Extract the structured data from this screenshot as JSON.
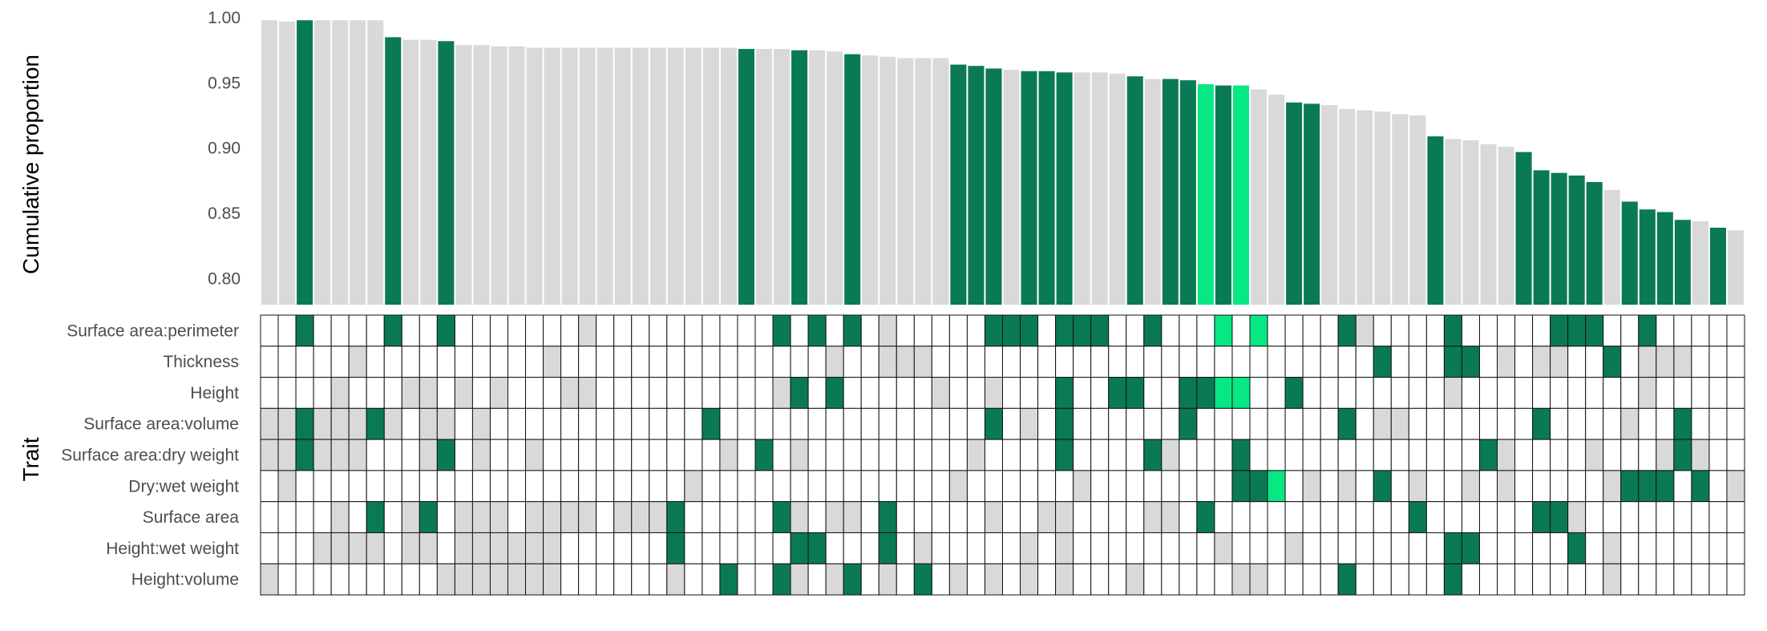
{
  "colors": {
    "dark_green": "#0a7a55",
    "light_green": "#07e884",
    "grey": "#d9d9d9",
    "white": "#ffffff",
    "grid_stroke": "#111111"
  },
  "chart_data": {
    "type": "bar",
    "ylabel": "Cumulative proportion",
    "trait_axis_label": "Trait",
    "ylim": [
      0.78,
      1.0
    ],
    "yticks": [
      "0.80",
      "0.85",
      "0.90",
      "0.95",
      "1.00"
    ],
    "ytick_values": [
      0.8,
      0.85,
      0.9,
      0.95,
      1.0
    ],
    "values": [
      0.998,
      0.997,
      0.998,
      0.998,
      0.998,
      0.998,
      0.998,
      0.985,
      0.983,
      0.983,
      0.982,
      0.979,
      0.979,
      0.978,
      0.978,
      0.977,
      0.977,
      0.977,
      0.977,
      0.977,
      0.977,
      0.977,
      0.977,
      0.977,
      0.977,
      0.977,
      0.977,
      0.976,
      0.976,
      0.976,
      0.975,
      0.975,
      0.974,
      0.972,
      0.971,
      0.97,
      0.969,
      0.969,
      0.969,
      0.964,
      0.963,
      0.961,
      0.96,
      0.959,
      0.959,
      0.958,
      0.958,
      0.958,
      0.957,
      0.955,
      0.953,
      0.953,
      0.952,
      0.949,
      0.948,
      0.948,
      0.945,
      0.941,
      0.935,
      0.934,
      0.933,
      0.93,
      0.929,
      0.928,
      0.926,
      0.925,
      0.909,
      0.907,
      0.906,
      0.903,
      0.901,
      0.897,
      0.883,
      0.881,
      0.879,
      0.874,
      0.868,
      0.859,
      0.853,
      0.851,
      0.845,
      0.844,
      0.839,
      0.837
    ],
    "bar_highlight": [
      "g",
      "g",
      "d",
      "g",
      "g",
      "g",
      "g",
      "d",
      "g",
      "g",
      "d",
      "g",
      "g",
      "g",
      "g",
      "g",
      "g",
      "g",
      "g",
      "g",
      "g",
      "g",
      "g",
      "g",
      "g",
      "g",
      "g",
      "d",
      "g",
      "g",
      "d",
      "g",
      "g",
      "d",
      "g",
      "g",
      "g",
      "g",
      "g",
      "d",
      "d",
      "d",
      "g",
      "d",
      "d",
      "d",
      "g",
      "g",
      "g",
      "d",
      "g",
      "d",
      "d",
      "l",
      "d",
      "l",
      "g",
      "g",
      "d",
      "d",
      "g",
      "g",
      "g",
      "g",
      "g",
      "g",
      "d",
      "g",
      "g",
      "g",
      "g",
      "d",
      "d",
      "d",
      "d",
      "d",
      "g",
      "d",
      "d",
      "d",
      "d",
      "g",
      "d",
      "g"
    ],
    "traits": [
      "Surface area:perimeter",
      "Thickness",
      "Height",
      "Surface area:volume",
      "Surface area:dry weight",
      "Dry:wet weight",
      "Surface area",
      "Height:wet weight",
      "Height:volume"
    ],
    "matrix": [
      "..D....D..D.......G..........D.D.D.G.....DDD.DDD..D...L.L....DG....D.....DDD..D.....DD..D...D.",
      ".....G..........G...............G..GGG.........................D...DD.G.GG..D.GGG.....DD..DDGD..DG",
      "....G...GG.G.G...GG..........GD.D.....G..G...D..DD..DDLL..D........G..........G.........G........G",
      "GGDGGGDG.GG.G............D...............D.G.D......D........D.GG.......D....G..D..............",
      "GGDGGG...GD.G..G..........G.D.G.........G....D....DG...D.............DG....G...GDG......",
      ".G......................G..............G......G........DDL.G.G.D.G..G.G.....GDDD.D.GG...G...G...",
      "....G.D.GD.GGG.GGGG.GGGD.....DG.GG.D.....G..GG....GG.D...........D......DDG......",
      "...GGGG.GG.GGGGGG......D......DD...D.G.....G.G........G...G........DD.....D.G...",
      "G.........GGGGGGG......G..D..DG.GD.G.D.G.G.G.G...G.....GG....D.....D........G...........GD.G"
    ]
  }
}
